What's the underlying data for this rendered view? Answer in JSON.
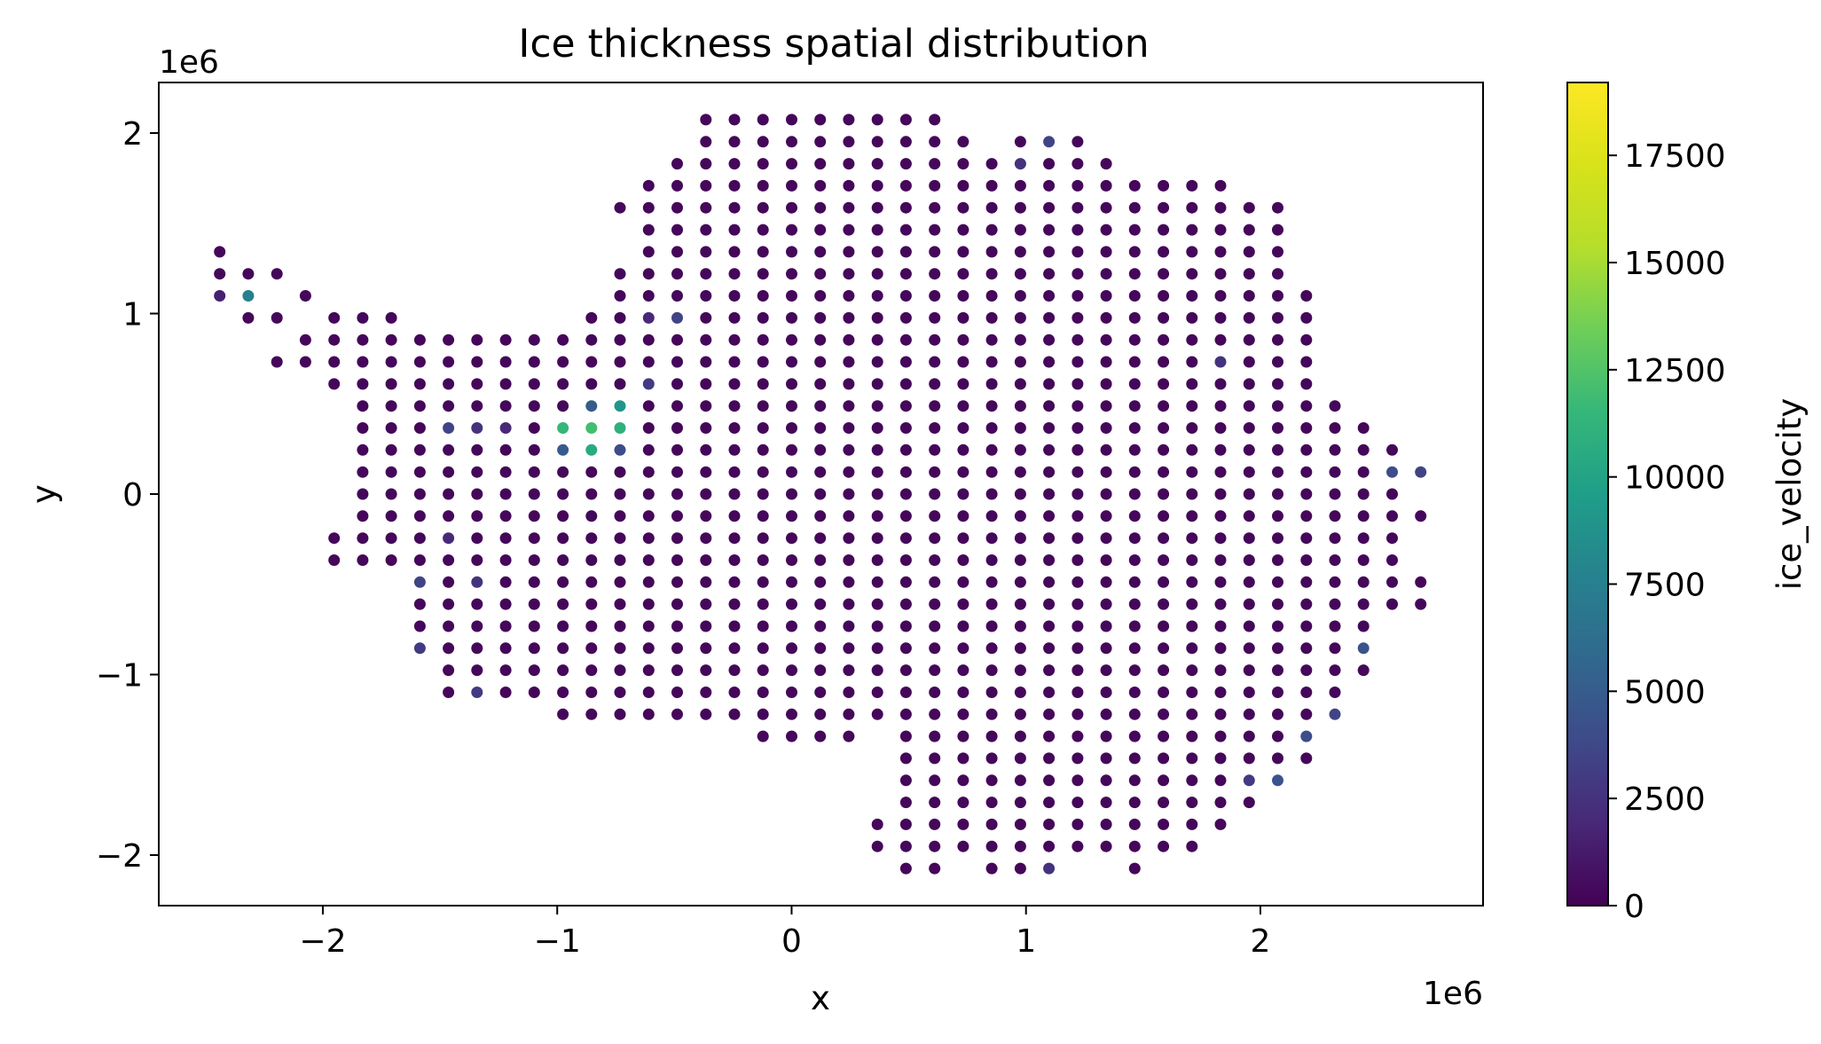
{
  "chart_data": {
    "type": "scatter",
    "title": "Ice thickness spatial distribution",
    "xlabel": "x",
    "ylabel": "y",
    "x_offset_text": "1e6",
    "y_offset_text": "1e6",
    "xlim": [
      -2700000,
      2950000
    ],
    "ylim": [
      -2280000,
      2280000
    ],
    "x_ticks": [
      -2000000,
      -1000000,
      0,
      1000000,
      2000000
    ],
    "x_tick_labels": [
      "−2",
      "−1",
      "0",
      "1",
      "2"
    ],
    "y_ticks": [
      -2000000,
      -1000000,
      0,
      1000000,
      2000000
    ],
    "y_tick_labels": [
      "−2",
      "−1",
      "0",
      "1",
      "2"
    ],
    "grid": false,
    "marker": "circle",
    "colormap": "viridis",
    "grid_spacing": 122000,
    "grid_origin_y": 122000,
    "color_label": "ice_velocity",
    "color_range": [
      0,
      19200
    ],
    "color_ticks": [
      0,
      2500,
      5000,
      7500,
      10000,
      12500,
      15000,
      17500
    ],
    "color_tick_labels": [
      "0",
      "2500",
      "5000",
      "7500",
      "10000",
      "12500",
      "15000",
      "17500"
    ],
    "rows": [
      {
        "y": 2074000,
        "x_ranges": [
          [
            -366000,
            610000
          ]
        ]
      },
      {
        "y": 1952000,
        "x_ranges": [
          [
            -366000,
            732000
          ],
          [
            976000,
            1220000
          ]
        ]
      },
      {
        "y": 1830000,
        "x_ranges": [
          [
            -488000,
            1342000
          ]
        ]
      },
      {
        "y": 1708000,
        "x_ranges": [
          [
            -610000,
            1830000
          ]
        ]
      },
      {
        "y": 1586000,
        "x_ranges": [
          [
            -732000,
            2074000
          ]
        ]
      },
      {
        "y": 1464000,
        "x_ranges": [
          [
            -610000,
            2074000
          ]
        ]
      },
      {
        "y": 1342000,
        "x_ranges": [
          [
            -2440000,
            -2440000
          ],
          [
            -610000,
            2074000
          ]
        ]
      },
      {
        "y": 1220000,
        "x_ranges": [
          [
            -2440000,
            -2196000
          ],
          [
            -732000,
            2074000
          ]
        ]
      },
      {
        "y": 1098000,
        "x_ranges": [
          [
            -2440000,
            -2318000
          ],
          [
            -2074000,
            -2074000
          ],
          [
            -732000,
            2196000
          ]
        ]
      },
      {
        "y": 976000,
        "x_ranges": [
          [
            -2318000,
            -2196000
          ],
          [
            -1952000,
            -1708000
          ],
          [
            -854000,
            2196000
          ]
        ]
      },
      {
        "y": 854000,
        "x_ranges": [
          [
            -2074000,
            -976000
          ],
          [
            -854000,
            2196000
          ]
        ]
      },
      {
        "y": 732000,
        "x_ranges": [
          [
            -2196000,
            -2074000
          ],
          [
            -1952000,
            2196000
          ]
        ]
      },
      {
        "y": 610000,
        "x_ranges": [
          [
            -1952000,
            2196000
          ]
        ]
      },
      {
        "y": 488000,
        "x_ranges": [
          [
            -1830000,
            2318000
          ]
        ]
      },
      {
        "y": 366000,
        "x_ranges": [
          [
            -1830000,
            2440000
          ]
        ]
      },
      {
        "y": 244000,
        "x_ranges": [
          [
            -1830000,
            2562000
          ]
        ]
      },
      {
        "y": 122000,
        "x_ranges": [
          [
            -1830000,
            2684000
          ]
        ]
      },
      {
        "y": 0,
        "x_ranges": [
          [
            -1830000,
            2562000
          ]
        ]
      },
      {
        "y": -122000,
        "x_ranges": [
          [
            -1830000,
            2684000
          ]
        ]
      },
      {
        "y": -244000,
        "x_ranges": [
          [
            -1952000,
            2562000
          ]
        ]
      },
      {
        "y": -366000,
        "x_ranges": [
          [
            -1952000,
            2562000
          ]
        ]
      },
      {
        "y": -488000,
        "x_ranges": [
          [
            -1586000,
            2684000
          ]
        ]
      },
      {
        "y": -610000,
        "x_ranges": [
          [
            -1586000,
            2684000
          ]
        ]
      },
      {
        "y": -732000,
        "x_ranges": [
          [
            -1586000,
            2440000
          ]
        ]
      },
      {
        "y": -854000,
        "x_ranges": [
          [
            -1586000,
            2440000
          ]
        ]
      },
      {
        "y": -976000,
        "x_ranges": [
          [
            -1464000,
            2440000
          ]
        ]
      },
      {
        "y": -1098000,
        "x_ranges": [
          [
            -1464000,
            2318000
          ]
        ]
      },
      {
        "y": -1220000,
        "x_ranges": [
          [
            -976000,
            2318000
          ]
        ]
      },
      {
        "y": -1342000,
        "x_ranges": [
          [
            -122000,
            244000
          ],
          [
            488000,
            2196000
          ]
        ]
      },
      {
        "y": -1464000,
        "x_ranges": [
          [
            488000,
            2196000
          ]
        ]
      },
      {
        "y": -1586000,
        "x_ranges": [
          [
            488000,
            2074000
          ]
        ]
      },
      {
        "y": -1708000,
        "x_ranges": [
          [
            488000,
            1952000
          ]
        ]
      },
      {
        "y": -1830000,
        "x_ranges": [
          [
            366000,
            1830000
          ]
        ]
      },
      {
        "y": -1952000,
        "x_ranges": [
          [
            366000,
            1708000
          ]
        ]
      },
      {
        "y": -2074000,
        "x_ranges": [
          [
            488000,
            610000
          ],
          [
            854000,
            1098000
          ],
          [
            1464000,
            1464000
          ]
        ]
      }
    ],
    "highlighted_points": [
      {
        "x": -976000,
        "y": 366000,
        "value": 11500
      },
      {
        "x": -854000,
        "y": 366000,
        "value": 12000
      },
      {
        "x": -732000,
        "y": 366000,
        "value": 11000
      },
      {
        "x": -854000,
        "y": 244000,
        "value": 10500
      },
      {
        "x": -976000,
        "y": 244000,
        "value": 5000
      },
      {
        "x": -854000,
        "y": 488000,
        "value": 5000
      },
      {
        "x": -732000,
        "y": 488000,
        "value": 9000
      },
      {
        "x": -732000,
        "y": 244000,
        "value": 4000
      },
      {
        "x": -2318000,
        "y": 1098000,
        "value": 7500
      },
      {
        "x": -1464000,
        "y": 366000,
        "value": 3500
      },
      {
        "x": -1342000,
        "y": 366000,
        "value": 2500
      },
      {
        "x": -1220000,
        "y": 366000,
        "value": 2000
      },
      {
        "x": -610000,
        "y": 976000,
        "value": 2000
      },
      {
        "x": -488000,
        "y": 976000,
        "value": 3500
      },
      {
        "x": -610000,
        "y": 610000,
        "value": 3000
      },
      {
        "x": 976000,
        "y": 1830000,
        "value": 2500
      },
      {
        "x": 1098000,
        "y": 1952000,
        "value": 3500
      },
      {
        "x": 1830000,
        "y": 732000,
        "value": 2500
      },
      {
        "x": 2562000,
        "y": 122000,
        "value": 4000
      },
      {
        "x": 2684000,
        "y": 122000,
        "value": 3500
      },
      {
        "x": -1586000,
        "y": -488000,
        "value": 3500
      },
      {
        "x": -1586000,
        "y": -854000,
        "value": 3000
      },
      {
        "x": -1342000,
        "y": -1098000,
        "value": 3000
      },
      {
        "x": -1342000,
        "y": -488000,
        "value": 2500
      },
      {
        "x": 2440000,
        "y": -854000,
        "value": 4500
      },
      {
        "x": 2318000,
        "y": -1220000,
        "value": 3500
      },
      {
        "x": 2196000,
        "y": -1342000,
        "value": 4000
      },
      {
        "x": 2074000,
        "y": -1586000,
        "value": 4500
      },
      {
        "x": 1952000,
        "y": -1586000,
        "value": 3000
      },
      {
        "x": 1098000,
        "y": -2074000,
        "value": 2500
      },
      {
        "x": -2440000,
        "y": 1098000,
        "value": 1500
      },
      {
        "x": -1464000,
        "y": -244000,
        "value": 2000
      }
    ],
    "base_value": 300
  }
}
